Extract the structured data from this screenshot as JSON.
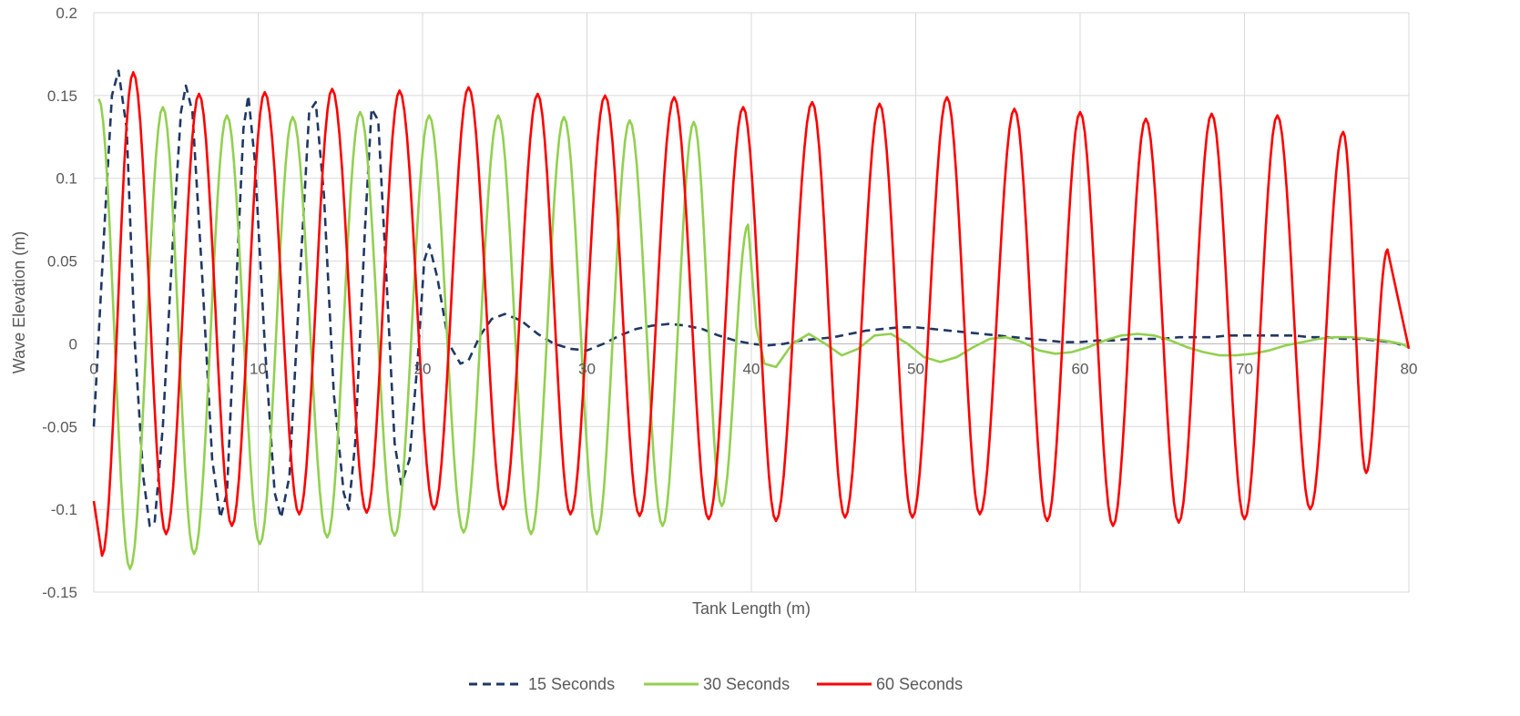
{
  "chart_data": {
    "type": "line",
    "title": "",
    "xlabel": "Tank Length (m)",
    "ylabel": "Wave Elevation (m)",
    "xlim": [
      0,
      80
    ],
    "ylim": [
      -0.15,
      0.2
    ],
    "x_ticks": [
      "0",
      "10",
      "20",
      "30",
      "40",
      "50",
      "60",
      "70",
      "80"
    ],
    "y_ticks": [
      "0.2",
      "0.15",
      "0.1",
      "0.05",
      "0",
      "-0.05",
      "-0.1",
      "-0.15"
    ],
    "x_tick_values": [
      0,
      10,
      20,
      30,
      40,
      50,
      60,
      70,
      80
    ],
    "y_tick_values": [
      0.2,
      0.15,
      0.1,
      0.05,
      0,
      -0.05,
      -0.1,
      -0.15
    ],
    "grid": true,
    "legend_position": "bottom-center",
    "series": [
      {
        "name": "15 Seconds",
        "color": "#1f3864",
        "dash": "dashed",
        "points": [
          [
            0,
            -0.05
          ],
          [
            0.7,
            0.08
          ],
          [
            1.1,
            0.15
          ],
          [
            1.5,
            0.165
          ],
          [
            2.0,
            0.13
          ],
          [
            2.5,
            0.0
          ],
          [
            3.0,
            -0.08
          ],
          [
            3.4,
            -0.11
          ],
          [
            3.7,
            -0.108
          ],
          [
            4.2,
            -0.05
          ],
          [
            4.8,
            0.06
          ],
          [
            5.3,
            0.14
          ],
          [
            5.6,
            0.156
          ],
          [
            6.0,
            0.14
          ],
          [
            6.6,
            0.04
          ],
          [
            7.2,
            -0.07
          ],
          [
            7.7,
            -0.105
          ],
          [
            8.1,
            -0.09
          ],
          [
            8.6,
            0.02
          ],
          [
            9.1,
            0.13
          ],
          [
            9.4,
            0.15
          ],
          [
            9.8,
            0.11
          ],
          [
            10.4,
            0.0
          ],
          [
            11.0,
            -0.09
          ],
          [
            11.4,
            -0.105
          ],
          [
            11.9,
            -0.08
          ],
          [
            12.6,
            0.05
          ],
          [
            13.1,
            0.14
          ],
          [
            13.5,
            0.146
          ],
          [
            14.0,
            0.09
          ],
          [
            14.6,
            -0.03
          ],
          [
            15.2,
            -0.09
          ],
          [
            15.5,
            -0.1
          ],
          [
            15.9,
            -0.06
          ],
          [
            16.5,
            0.07
          ],
          [
            16.9,
            0.142
          ],
          [
            17.3,
            0.135
          ],
          [
            17.8,
            0.04
          ],
          [
            18.3,
            -0.06
          ],
          [
            18.7,
            -0.085
          ],
          [
            19.2,
            -0.07
          ],
          [
            19.7,
            -0.01
          ],
          [
            20.1,
            0.05
          ],
          [
            20.4,
            0.06
          ],
          [
            20.9,
            0.04
          ],
          [
            21.6,
            0.0
          ],
          [
            22.3,
            -0.012
          ],
          [
            22.8,
            -0.01
          ],
          [
            23.5,
            0.005
          ],
          [
            24.2,
            0.015
          ],
          [
            25.0,
            0.018
          ],
          [
            26.0,
            0.014
          ],
          [
            27.0,
            0.006
          ],
          [
            28.0,
            0.0
          ],
          [
            29.0,
            -0.003
          ],
          [
            30.0,
            -0.004
          ],
          [
            31.0,
            0.0
          ],
          [
            32.0,
            0.005
          ],
          [
            33.0,
            0.009
          ],
          [
            34.0,
            0.011
          ],
          [
            35.0,
            0.012
          ],
          [
            36.0,
            0.011
          ],
          [
            37.0,
            0.009
          ],
          [
            38.0,
            0.005
          ],
          [
            39.0,
            0.002
          ],
          [
            40.0,
            0.0
          ],
          [
            41.0,
            -0.001
          ],
          [
            42.0,
            0.0
          ],
          [
            43.0,
            0.002
          ],
          [
            44.0,
            0.003
          ],
          [
            45.0,
            0.004
          ],
          [
            46.0,
            0.006
          ],
          [
            47.0,
            0.008
          ],
          [
            48.0,
            0.009
          ],
          [
            49.0,
            0.01
          ],
          [
            50.0,
            0.01
          ],
          [
            51.0,
            0.009
          ],
          [
            52.0,
            0.008
          ],
          [
            53.0,
            0.007
          ],
          [
            54.0,
            0.006
          ],
          [
            55.0,
            0.005
          ],
          [
            56.0,
            0.004
          ],
          [
            57.0,
            0.003
          ],
          [
            58.0,
            0.002
          ],
          [
            59.0,
            0.001
          ],
          [
            60.0,
            0.001
          ],
          [
            61.0,
            0.002
          ],
          [
            62.0,
            0.002
          ],
          [
            63.0,
            0.003
          ],
          [
            64.0,
            0.003
          ],
          [
            65.0,
            0.003
          ],
          [
            66.0,
            0.004
          ],
          [
            67.0,
            0.004
          ],
          [
            68.0,
            0.004
          ],
          [
            69.0,
            0.005
          ],
          [
            70.0,
            0.005
          ],
          [
            71.0,
            0.005
          ],
          [
            72.0,
            0.005
          ],
          [
            73.0,
            0.005
          ],
          [
            74.0,
            0.004
          ],
          [
            75.0,
            0.004
          ],
          [
            76.0,
            0.003
          ],
          [
            77.0,
            0.003
          ],
          [
            78.0,
            0.002
          ],
          [
            79.0,
            0.001
          ],
          [
            80.0,
            -0.002
          ]
        ]
      },
      {
        "name": "30 Seconds",
        "color": "#92d050",
        "dash": "solid",
        "waves": {
          "x_start": 0,
          "peaks": [
            [
              0.3,
              0.148
            ],
            [
              4.2,
              0.143
            ],
            [
              8.1,
              0.138
            ],
            [
              12.1,
              0.137
            ],
            [
              16.2,
              0.14
            ],
            [
              20.4,
              0.138
            ],
            [
              24.6,
              0.138
            ],
            [
              28.6,
              0.137
            ],
            [
              32.6,
              0.135
            ],
            [
              36.5,
              0.134
            ],
            [
              39.8,
              0.072
            ]
          ],
          "troughs": [
            [
              2.2,
              -0.136
            ],
            [
              6.1,
              -0.127
            ],
            [
              10.1,
              -0.121
            ],
            [
              14.2,
              -0.117
            ],
            [
              18.3,
              -0.116
            ],
            [
              22.5,
              -0.114
            ],
            [
              26.6,
              -0.115
            ],
            [
              30.6,
              -0.115
            ],
            [
              34.6,
              -0.11
            ],
            [
              38.2,
              -0.098
            ]
          ]
        },
        "tail": [
          [
            40.3,
            0.01
          ],
          [
            40.8,
            -0.012
          ],
          [
            41.5,
            -0.014
          ],
          [
            42.5,
            0.0
          ],
          [
            43.5,
            0.006
          ],
          [
            44.5,
            0.0
          ],
          [
            45.5,
            -0.007
          ],
          [
            46.5,
            -0.003
          ],
          [
            47.5,
            0.005
          ],
          [
            48.5,
            0.006
          ],
          [
            49.5,
            0.0
          ],
          [
            50.5,
            -0.008
          ],
          [
            51.5,
            -0.011
          ],
          [
            52.5,
            -0.008
          ],
          [
            53.5,
            -0.002
          ],
          [
            54.5,
            0.003
          ],
          [
            55.5,
            0.004
          ],
          [
            56.5,
            0.001
          ],
          [
            57.5,
            -0.004
          ],
          [
            58.5,
            -0.006
          ],
          [
            59.5,
            -0.005
          ],
          [
            60.5,
            -0.002
          ],
          [
            61.5,
            0.002
          ],
          [
            62.5,
            0.005
          ],
          [
            63.5,
            0.006
          ],
          [
            64.5,
            0.005
          ],
          [
            65.5,
            0.002
          ],
          [
            66.5,
            -0.002
          ],
          [
            67.5,
            -0.005
          ],
          [
            68.5,
            -0.007
          ],
          [
            69.5,
            -0.007
          ],
          [
            70.5,
            -0.006
          ],
          [
            71.5,
            -0.004
          ],
          [
            72.5,
            -0.001
          ],
          [
            73.5,
            0.001
          ],
          [
            74.5,
            0.003
          ],
          [
            75.5,
            0.004
          ],
          [
            76.5,
            0.004
          ],
          [
            77.5,
            0.003
          ],
          [
            78.5,
            0.002
          ],
          [
            79.5,
            0.0
          ],
          [
            80.0,
            -0.002
          ]
        ]
      },
      {
        "name": "60 Seconds",
        "color": "#ff0000",
        "dash": "solid",
        "waves": {
          "x_start": 0,
          "peaks": [
            [
              2.4,
              0.164
            ],
            [
              6.4,
              0.151
            ],
            [
              10.4,
              0.152
            ],
            [
              14.5,
              0.154
            ],
            [
              18.6,
              0.153
            ],
            [
              22.8,
              0.155
            ],
            [
              27.0,
              0.151
            ],
            [
              31.1,
              0.15
            ],
            [
              35.3,
              0.149
            ],
            [
              39.5,
              0.143
            ],
            [
              43.7,
              0.146
            ],
            [
              47.8,
              0.145
            ],
            [
              51.9,
              0.149
            ],
            [
              56.0,
              0.142
            ],
            [
              60.0,
              0.14
            ],
            [
              64.0,
              0.136
            ],
            [
              68.0,
              0.139
            ],
            [
              72.0,
              0.138
            ],
            [
              76.0,
              0.128
            ],
            [
              78.7,
              0.057
            ]
          ],
          "troughs": [
            [
              0.5,
              -0.128
            ],
            [
              4.4,
              -0.115
            ],
            [
              8.4,
              -0.11
            ],
            [
              12.5,
              -0.103
            ],
            [
              16.6,
              -0.102
            ],
            [
              20.7,
              -0.1
            ],
            [
              24.9,
              -0.1
            ],
            [
              29.0,
              -0.103
            ],
            [
              33.2,
              -0.104
            ],
            [
              37.4,
              -0.106
            ],
            [
              41.5,
              -0.107
            ],
            [
              45.7,
              -0.105
            ],
            [
              49.8,
              -0.105
            ],
            [
              53.9,
              -0.103
            ],
            [
              58.0,
              -0.107
            ],
            [
              62.0,
              -0.11
            ],
            [
              66.0,
              -0.108
            ],
            [
              70.0,
              -0.106
            ],
            [
              74.0,
              -0.1
            ],
            [
              77.4,
              -0.078
            ]
          ],
          "x_end": 80,
          "y_start": -0.095,
          "y_end": -0.003
        }
      }
    ]
  }
}
